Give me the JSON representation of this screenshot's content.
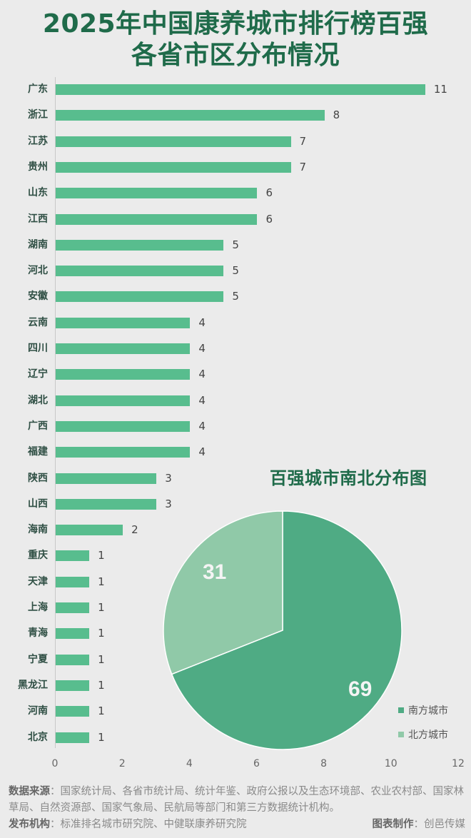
{
  "title": {
    "line1": "2025年中国康养城市排行榜百强",
    "line2": "各省市区分布情况"
  },
  "colors": {
    "title": "#1f6b4a",
    "bar": "#58bd8e",
    "south": "#4fab84",
    "north": "#90c9a8",
    "background": "#ebebeb"
  },
  "chart_data": [
    {
      "type": "bar",
      "orientation": "horizontal",
      "title": "2025年中国康养城市排行榜百强各省市区分布情况",
      "categories": [
        "广东",
        "浙江",
        "江苏",
        "贵州",
        "山东",
        "江西",
        "湖南",
        "河北",
        "安徽",
        "云南",
        "四川",
        "辽宁",
        "湖北",
        "广西",
        "福建",
        "陕西",
        "山西",
        "海南",
        "重庆",
        "天津",
        "上海",
        "青海",
        "宁夏",
        "黑龙江",
        "河南",
        "北京"
      ],
      "values": [
        11,
        8,
        7,
        7,
        6,
        6,
        5,
        5,
        5,
        4,
        4,
        4,
        4,
        4,
        4,
        3,
        3,
        2,
        1,
        1,
        1,
        1,
        1,
        1,
        1,
        1
      ],
      "xlabel": "",
      "ylabel": "",
      "xlim": [
        0,
        12
      ],
      "xticks": [
        0,
        2,
        4,
        6,
        8,
        10,
        12
      ],
      "grid": false,
      "data_labels": true
    },
    {
      "type": "pie",
      "title": "百强城市南北分布图",
      "categories": [
        "南方城市",
        "北方城市"
      ],
      "values": [
        69,
        31
      ],
      "legend_position": "right-bottom"
    }
  ],
  "bars": [
    {
      "label": "广东",
      "value": "11",
      "v": 11
    },
    {
      "label": "浙江",
      "value": "8",
      "v": 8
    },
    {
      "label": "江苏",
      "value": "7",
      "v": 7
    },
    {
      "label": "贵州",
      "value": "7",
      "v": 7
    },
    {
      "label": "山东",
      "value": "6",
      "v": 6
    },
    {
      "label": "江西",
      "value": "6",
      "v": 6
    },
    {
      "label": "湖南",
      "value": "5",
      "v": 5
    },
    {
      "label": "河北",
      "value": "5",
      "v": 5
    },
    {
      "label": "安徽",
      "value": "5",
      "v": 5
    },
    {
      "label": "云南",
      "value": "4",
      "v": 4
    },
    {
      "label": "四川",
      "value": "4",
      "v": 4
    },
    {
      "label": "辽宁",
      "value": "4",
      "v": 4
    },
    {
      "label": "湖北",
      "value": "4",
      "v": 4
    },
    {
      "label": "广西",
      "value": "4",
      "v": 4
    },
    {
      "label": "福建",
      "value": "4",
      "v": 4
    },
    {
      "label": "陕西",
      "value": "3",
      "v": 3
    },
    {
      "label": "山西",
      "value": "3",
      "v": 3
    },
    {
      "label": "海南",
      "value": "2",
      "v": 2
    },
    {
      "label": "重庆",
      "value": "1",
      "v": 1
    },
    {
      "label": "天津",
      "value": "1",
      "v": 1
    },
    {
      "label": "上海",
      "value": "1",
      "v": 1
    },
    {
      "label": "青海",
      "value": "1",
      "v": 1
    },
    {
      "label": "宁夏",
      "value": "1",
      "v": 1
    },
    {
      "label": "黑龙江",
      "value": "1",
      "v": 1
    },
    {
      "label": "河南",
      "value": "1",
      "v": 1
    },
    {
      "label": "北京",
      "value": "1",
      "v": 1
    }
  ],
  "ticks": [
    "0",
    "2",
    "4",
    "6",
    "8",
    "10",
    "12"
  ],
  "pie": {
    "title": "百强城市南北分布图",
    "south_value": "69",
    "north_value": "31",
    "legend": [
      {
        "label": "南方城市"
      },
      {
        "label": "北方城市"
      }
    ]
  },
  "footer": {
    "source_label": "数据来源",
    "source_text": "：国家统计局、各省市统计局、统计年鉴、政府公报以及生态环境部、农业农村部、国家林草局、自然资源部、国家气象局、民航局等部门和第三方数据统计机构。",
    "publisher_label": "发布机构",
    "publisher_text": "：标准排名城市研究院、中健联康养研究院",
    "credit_label": "图表制作",
    "credit_text": "：创邑传媒"
  }
}
